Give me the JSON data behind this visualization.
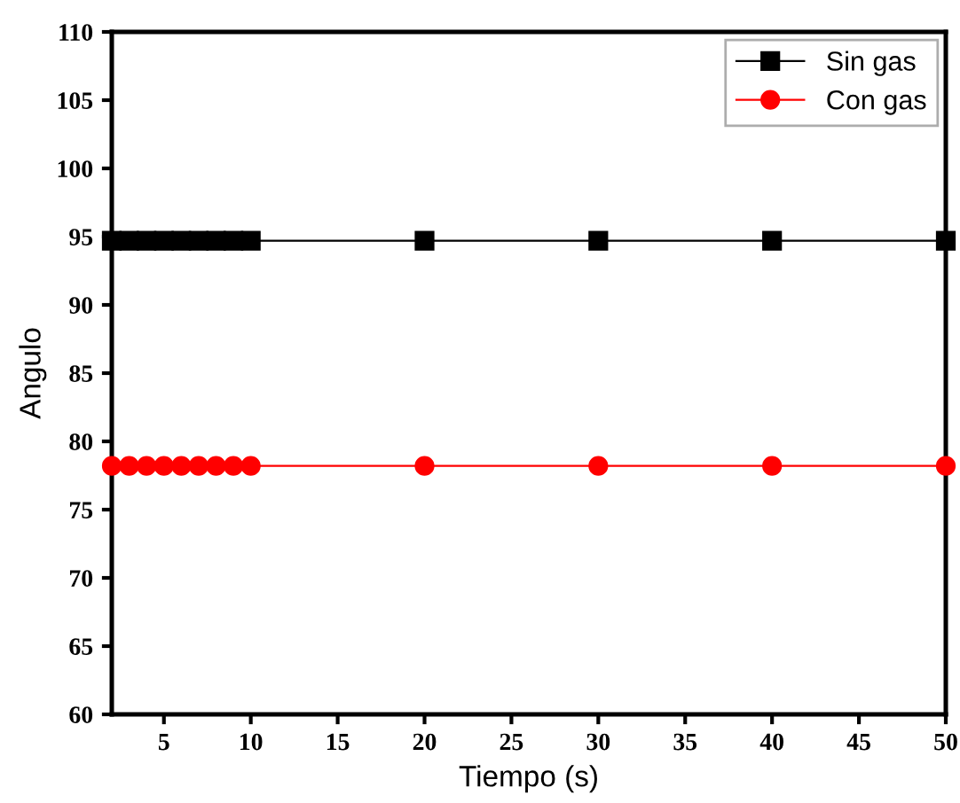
{
  "chart_data": {
    "type": "line",
    "xlabel": "Tiempo (s)",
    "ylabel": "Angulo",
    "x": [
      2,
      3,
      4,
      5,
      6,
      7,
      8,
      9,
      10,
      20,
      30,
      40,
      50
    ],
    "series": [
      {
        "name": "Sin gas",
        "color": "#000000",
        "marker": "square",
        "values": [
          94.7,
          94.7,
          94.7,
          94.7,
          94.7,
          94.7,
          94.7,
          94.7,
          94.7,
          94.7,
          94.7,
          94.7,
          94.7
        ]
      },
      {
        "name": "Con gas",
        "color": "#ff0000",
        "marker": "circle",
        "values": [
          78.2,
          78.2,
          78.2,
          78.2,
          78.2,
          78.2,
          78.2,
          78.2,
          78.2,
          78.2,
          78.2,
          78.2,
          78.2
        ]
      }
    ],
    "xlim": [
      2,
      50
    ],
    "xticks": [
      5,
      10,
      15,
      20,
      25,
      30,
      35,
      40,
      45,
      50
    ],
    "ylim": [
      60,
      110
    ],
    "yticks": [
      60,
      65,
      70,
      75,
      80,
      85,
      90,
      95,
      100,
      105,
      110
    ],
    "legend": "top right",
    "grid": false,
    "line_style": "solid"
  }
}
